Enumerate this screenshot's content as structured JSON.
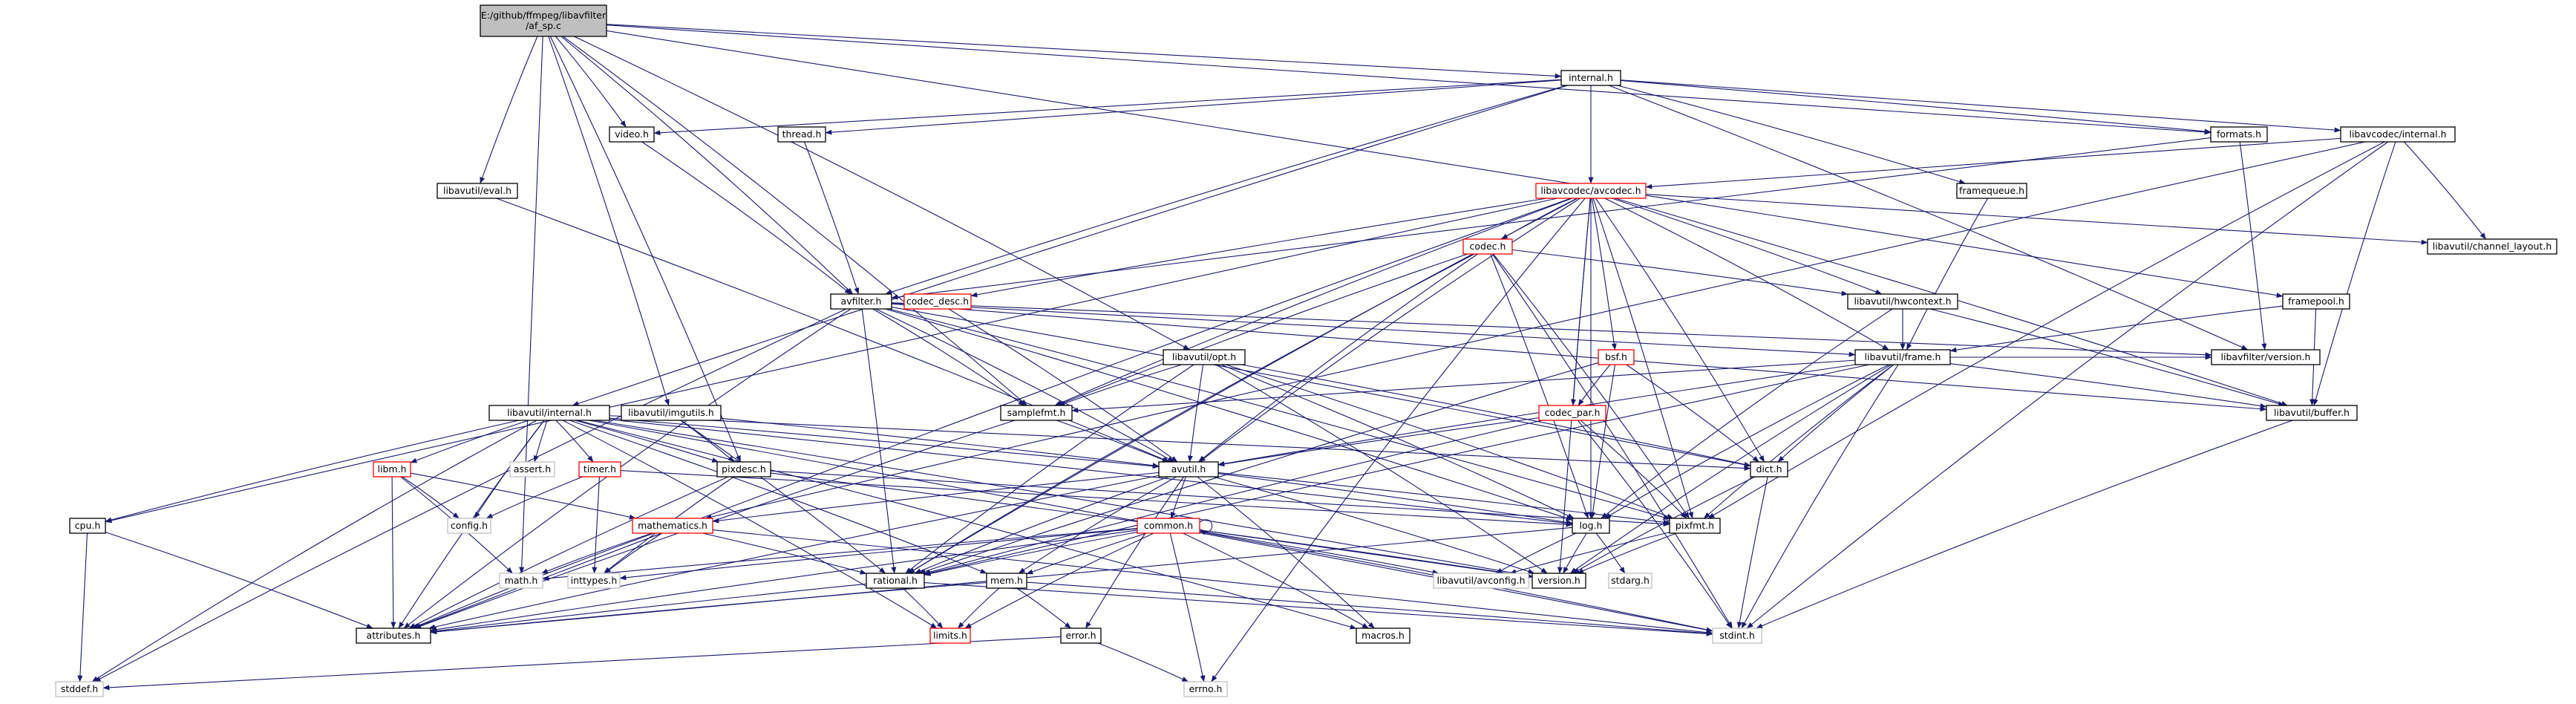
{
  "diagram": {
    "title": "E:/github/ffmpeg/libavfilter/af_sp.c",
    "colors": {
      "edge": "#191970",
      "normal_border": "#000000",
      "missing_border": "#ff0000",
      "system_border": "#bfbfbf",
      "root_fill": "#bfbfbf",
      "fill": "#ffffff"
    },
    "nodes": [
      {
        "id": "root",
        "label": [
          "E:/github/ffmpeg/libavfilter",
          "/af_sp.c"
        ],
        "style": "root"
      },
      {
        "id": "internal",
        "label": [
          "internal.h"
        ],
        "style": "normal"
      },
      {
        "id": "video",
        "label": [
          "video.h"
        ],
        "style": "normal"
      },
      {
        "id": "thread",
        "label": [
          "thread.h"
        ],
        "style": "normal"
      },
      {
        "id": "formats",
        "label": [
          "formats.h"
        ],
        "style": "normal"
      },
      {
        "id": "lavc_internal",
        "label": [
          "libavcodec/internal.h"
        ],
        "style": "normal"
      },
      {
        "id": "eval",
        "label": [
          "libavutil/eval.h"
        ],
        "style": "normal"
      },
      {
        "id": "framequeue",
        "label": [
          "framequeue.h"
        ],
        "style": "normal"
      },
      {
        "id": "avcodec",
        "label": [
          "libavcodec/avcodec.h"
        ],
        "style": "missing"
      },
      {
        "id": "channel_layout",
        "label": [
          "libavutil/channel_layout.h"
        ],
        "style": "normal"
      },
      {
        "id": "codec",
        "label": [
          "codec.h"
        ],
        "style": "missing"
      },
      {
        "id": "codec_desc",
        "label": [
          "codec_desc.h"
        ],
        "style": "missing"
      },
      {
        "id": "avfilter",
        "label": [
          "avfilter.h"
        ],
        "style": "normal"
      },
      {
        "id": "hwcontext",
        "label": [
          "libavutil/hwcontext.h"
        ],
        "style": "normal"
      },
      {
        "id": "framepool",
        "label": [
          "framepool.h"
        ],
        "style": "normal"
      },
      {
        "id": "opt",
        "label": [
          "libavutil/opt.h"
        ],
        "style": "normal"
      },
      {
        "id": "bsf",
        "label": [
          "bsf.h"
        ],
        "style": "missing"
      },
      {
        "id": "frame",
        "label": [
          "libavutil/frame.h"
        ],
        "style": "normal"
      },
      {
        "id": "lavfi_version",
        "label": [
          "libavfilter/version.h"
        ],
        "style": "normal"
      },
      {
        "id": "lavu_internal",
        "label": [
          "libavutil/internal.h"
        ],
        "style": "normal"
      },
      {
        "id": "imgutils",
        "label": [
          "libavutil/imgutils.h"
        ],
        "style": "normal"
      },
      {
        "id": "samplefmt",
        "label": [
          "samplefmt.h"
        ],
        "style": "normal"
      },
      {
        "id": "codec_par",
        "label": [
          "codec_par.h"
        ],
        "style": "missing"
      },
      {
        "id": "buffer",
        "label": [
          "libavutil/buffer.h"
        ],
        "style": "normal"
      },
      {
        "id": "libm",
        "label": [
          "libm.h"
        ],
        "style": "missing"
      },
      {
        "id": "assert",
        "label": [
          "assert.h"
        ],
        "style": "system"
      },
      {
        "id": "timer",
        "label": [
          "timer.h"
        ],
        "style": "missing"
      },
      {
        "id": "pixdesc",
        "label": [
          "pixdesc.h"
        ],
        "style": "normal"
      },
      {
        "id": "avutil",
        "label": [
          "avutil.h"
        ],
        "style": "normal"
      },
      {
        "id": "dict",
        "label": [
          "dict.h"
        ],
        "style": "normal"
      },
      {
        "id": "cpu",
        "label": [
          "cpu.h"
        ],
        "style": "normal"
      },
      {
        "id": "config",
        "label": [
          "config.h"
        ],
        "style": "system"
      },
      {
        "id": "mathematics",
        "label": [
          "mathematics.h"
        ],
        "style": "missing"
      },
      {
        "id": "common",
        "label": [
          "common.h"
        ],
        "style": "missing"
      },
      {
        "id": "log",
        "label": [
          "log.h"
        ],
        "style": "normal"
      },
      {
        "id": "pixfmt",
        "label": [
          "pixfmt.h"
        ],
        "style": "normal"
      },
      {
        "id": "math",
        "label": [
          "math.h"
        ],
        "style": "system"
      },
      {
        "id": "inttypes",
        "label": [
          "inttypes.h"
        ],
        "style": "system"
      },
      {
        "id": "rational",
        "label": [
          "rational.h"
        ],
        "style": "normal"
      },
      {
        "id": "mem",
        "label": [
          "mem.h"
        ],
        "style": "normal"
      },
      {
        "id": "avconfig",
        "label": [
          "libavutil/avconfig.h"
        ],
        "style": "system"
      },
      {
        "id": "version",
        "label": [
          "version.h"
        ],
        "style": "normal"
      },
      {
        "id": "stdarg",
        "label": [
          "stdarg.h"
        ],
        "style": "system"
      },
      {
        "id": "attributes",
        "label": [
          "attributes.h"
        ],
        "style": "normal"
      },
      {
        "id": "limits",
        "label": [
          "limits.h"
        ],
        "style": "missing"
      },
      {
        "id": "error",
        "label": [
          "error.h"
        ],
        "style": "normal"
      },
      {
        "id": "macros",
        "label": [
          "macros.h"
        ],
        "style": "normal"
      },
      {
        "id": "stdint",
        "label": [
          "stdint.h"
        ],
        "style": "system"
      },
      {
        "id": "stddef",
        "label": [
          "stddef.h"
        ],
        "style": "system"
      },
      {
        "id": "errno",
        "label": [
          "errno.h"
        ],
        "style": "system"
      }
    ],
    "edges": [
      [
        "root",
        "internal"
      ],
      [
        "root",
        "video"
      ],
      [
        "root",
        "formats"
      ],
      [
        "root",
        "eval"
      ],
      [
        "root",
        "avfilter"
      ],
      [
        "root",
        "opt"
      ],
      [
        "root",
        "imgutils"
      ],
      [
        "root",
        "pixdesc"
      ],
      [
        "root",
        "math"
      ],
      [
        "root",
        "framepool"
      ],
      [
        "root",
        "samplefmt"
      ],
      [
        "internal",
        "video"
      ],
      [
        "internal",
        "thread"
      ],
      [
        "internal",
        "formats"
      ],
      [
        "internal",
        "lavc_internal"
      ],
      [
        "internal",
        "framequeue"
      ],
      [
        "internal",
        "avcodec"
      ],
      [
        "internal",
        "avfilter"
      ],
      [
        "internal",
        "lavu_internal"
      ],
      [
        "internal",
        "lavfi_version"
      ],
      [
        "video",
        "avfilter"
      ],
      [
        "thread",
        "avfilter"
      ],
      [
        "formats",
        "avfilter"
      ],
      [
        "formats",
        "lavfi_version"
      ],
      [
        "lavc_internal",
        "avcodec"
      ],
      [
        "lavc_internal",
        "channel_layout"
      ],
      [
        "lavc_internal",
        "buffer"
      ],
      [
        "lavc_internal",
        "pixfmt"
      ],
      [
        "lavc_internal",
        "stdint"
      ],
      [
        "lavc_internal",
        "mathematics"
      ],
      [
        "eval",
        "avutil"
      ],
      [
        "framequeue",
        "frame"
      ],
      [
        "avcodec",
        "codec"
      ],
      [
        "avcodec",
        "codec_desc"
      ],
      [
        "avcodec",
        "hwcontext"
      ],
      [
        "avcodec",
        "bsf"
      ],
      [
        "avcodec",
        "frame"
      ],
      [
        "avcodec",
        "channel_layout"
      ],
      [
        "avcodec",
        "codec_par"
      ],
      [
        "avcodec",
        "samplefmt"
      ],
      [
        "avcodec",
        "avutil"
      ],
      [
        "avcodec",
        "dict"
      ],
      [
        "avcodec",
        "log"
      ],
      [
        "avcodec",
        "pixfmt"
      ],
      [
        "avcodec",
        "rational"
      ],
      [
        "avcodec",
        "attributes"
      ],
      [
        "avcodec",
        "buffer"
      ],
      [
        "avcodec",
        "cpu"
      ],
      [
        "avcodec",
        "errno"
      ],
      [
        "avcodec",
        "version"
      ],
      [
        "codec",
        "hwcontext"
      ],
      [
        "codec",
        "avutil"
      ],
      [
        "codec",
        "log"
      ],
      [
        "codec",
        "pixfmt"
      ],
      [
        "codec",
        "rational"
      ],
      [
        "codec",
        "samplefmt"
      ],
      [
        "codec",
        "stdint"
      ],
      [
        "codec_desc",
        "avutil"
      ],
      [
        "avfilter",
        "frame"
      ],
      [
        "avfilter",
        "lavfi_version"
      ],
      [
        "avfilter",
        "buffer"
      ],
      [
        "avfilter",
        "dict"
      ],
      [
        "avfilter",
        "log"
      ],
      [
        "avfilter",
        "pixfmt"
      ],
      [
        "avfilter",
        "rational"
      ],
      [
        "avfilter",
        "samplefmt"
      ],
      [
        "avfilter",
        "avutil"
      ],
      [
        "avfilter",
        "attributes"
      ],
      [
        "avfilter",
        "stddef"
      ],
      [
        "hwcontext",
        "frame"
      ],
      [
        "hwcontext",
        "buffer"
      ],
      [
        "hwcontext",
        "log"
      ],
      [
        "framepool",
        "frame"
      ],
      [
        "framepool",
        "buffer"
      ],
      [
        "opt",
        "rational"
      ],
      [
        "opt",
        "avutil"
      ],
      [
        "opt",
        "dict"
      ],
      [
        "opt",
        "log"
      ],
      [
        "opt",
        "pixfmt"
      ],
      [
        "opt",
        "samplefmt"
      ],
      [
        "opt",
        "version"
      ],
      [
        "bsf",
        "codec_par"
      ],
      [
        "bsf",
        "dict"
      ],
      [
        "bsf",
        "log"
      ],
      [
        "bsf",
        "rational"
      ],
      [
        "frame",
        "buffer"
      ],
      [
        "frame",
        "samplefmt"
      ],
      [
        "frame",
        "avutil"
      ],
      [
        "frame",
        "dict"
      ],
      [
        "frame",
        "rational"
      ],
      [
        "frame",
        "pixfmt"
      ],
      [
        "frame",
        "version"
      ],
      [
        "frame",
        "log"
      ],
      [
        "frame",
        "stdint"
      ],
      [
        "frame",
        "lavfi_version"
      ],
      [
        "lavu_internal",
        "libm"
      ],
      [
        "lavu_internal",
        "assert"
      ],
      [
        "lavu_internal",
        "timer"
      ],
      [
        "lavu_internal",
        "pixdesc"
      ],
      [
        "lavu_internal",
        "avutil"
      ],
      [
        "lavu_internal",
        "cpu"
      ],
      [
        "lavu_internal",
        "config"
      ],
      [
        "lavu_internal",
        "attributes"
      ],
      [
        "lavu_internal",
        "stddef"
      ],
      [
        "lavu_internal",
        "dict"
      ],
      [
        "lavu_internal",
        "mem"
      ],
      [
        "lavu_internal",
        "macros"
      ],
      [
        "lavu_internal",
        "version"
      ],
      [
        "lavu_internal",
        "stdint"
      ],
      [
        "lavu_internal",
        "log"
      ],
      [
        "lavu_internal",
        "limits"
      ],
      [
        "imgutils",
        "avutil"
      ],
      [
        "imgutils",
        "pixdesc"
      ],
      [
        "imgutils",
        "rational"
      ],
      [
        "samplefmt",
        "avutil"
      ],
      [
        "samplefmt",
        "attributes"
      ],
      [
        "codec_par",
        "avutil"
      ],
      [
        "codec_par",
        "rational"
      ],
      [
        "codec_par",
        "pixfmt"
      ],
      [
        "codec_par",
        "stdint"
      ],
      [
        "buffer",
        "stdint"
      ],
      [
        "libm",
        "attributes"
      ],
      [
        "libm",
        "config"
      ],
      [
        "libm",
        "math"
      ],
      [
        "libm",
        "mathematics"
      ],
      [
        "timer",
        "config"
      ],
      [
        "timer",
        "inttypes"
      ],
      [
        "timer",
        "log"
      ],
      [
        "pixdesc",
        "inttypes"
      ],
      [
        "pixdesc",
        "attributes"
      ],
      [
        "pixdesc",
        "pixfmt"
      ],
      [
        "pixdesc",
        "version"
      ],
      [
        "avutil",
        "common"
      ],
      [
        "avutil",
        "rational"
      ],
      [
        "avutil",
        "version"
      ],
      [
        "avutil",
        "macros"
      ],
      [
        "avutil",
        "mathematics"
      ],
      [
        "avutil",
        "log"
      ],
      [
        "avutil",
        "pixfmt"
      ],
      [
        "avutil",
        "attributes"
      ],
      [
        "avutil",
        "error"
      ],
      [
        "avutil",
        "mem"
      ],
      [
        "dict",
        "stdint"
      ],
      [
        "dict",
        "version"
      ],
      [
        "cpu",
        "attributes"
      ],
      [
        "cpu",
        "stddef"
      ],
      [
        "mathematics",
        "math"
      ],
      [
        "mathematics",
        "inttypes"
      ],
      [
        "mathematics",
        "attributes"
      ],
      [
        "mathematics",
        "rational"
      ],
      [
        "mathematics",
        "stdint"
      ],
      [
        "common",
        "inttypes"
      ],
      [
        "common",
        "math"
      ],
      [
        "common",
        "attributes"
      ],
      [
        "common",
        "macros"
      ],
      [
        "common",
        "version"
      ],
      [
        "common",
        "avconfig"
      ],
      [
        "common",
        "limits"
      ],
      [
        "common",
        "errno"
      ],
      [
        "common",
        "stdint"
      ],
      [
        "common",
        "common"
      ],
      [
        "common",
        "rational"
      ],
      [
        "common",
        "mem"
      ],
      [
        "log",
        "stdarg"
      ],
      [
        "log",
        "attributes"
      ],
      [
        "log",
        "version"
      ],
      [
        "log",
        "avconfig"
      ],
      [
        "pixfmt",
        "version"
      ],
      [
        "pixfmt",
        "avconfig"
      ],
      [
        "rational",
        "attributes"
      ],
      [
        "rational",
        "limits"
      ],
      [
        "rational",
        "stdint"
      ],
      [
        "mem",
        "attributes"
      ],
      [
        "mem",
        "limits"
      ],
      [
        "mem",
        "stdint"
      ],
      [
        "mem",
        "error"
      ],
      [
        "error",
        "errno"
      ],
      [
        "error",
        "stddef"
      ]
    ]
  }
}
